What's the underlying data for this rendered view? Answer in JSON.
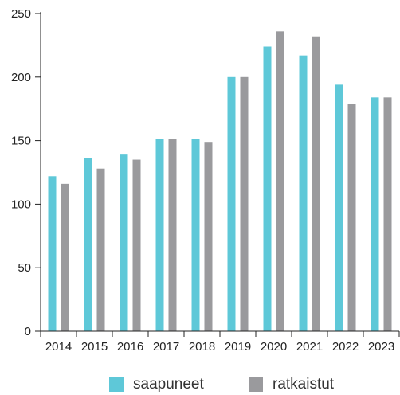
{
  "chart_data": {
    "type": "bar",
    "categories": [
      "2014",
      "2015",
      "2016",
      "2017",
      "2018",
      "2019",
      "2020",
      "2021",
      "2022",
      "2023"
    ],
    "series": [
      {
        "name": "saapuneet",
        "color": "#5ec8d8",
        "values": [
          122,
          136,
          139,
          151,
          151,
          200,
          224,
          217,
          194,
          184
        ]
      },
      {
        "name": "ratkaistut",
        "color": "#9a9a9d",
        "values": [
          116,
          128,
          135,
          151,
          149,
          200,
          236,
          232,
          179,
          184
        ]
      }
    ],
    "ylim": [
      0,
      250
    ],
    "yticks": [
      "0",
      "50",
      "100",
      "150",
      "200",
      "250"
    ],
    "grid": false,
    "legend_position": "bottom-center"
  }
}
